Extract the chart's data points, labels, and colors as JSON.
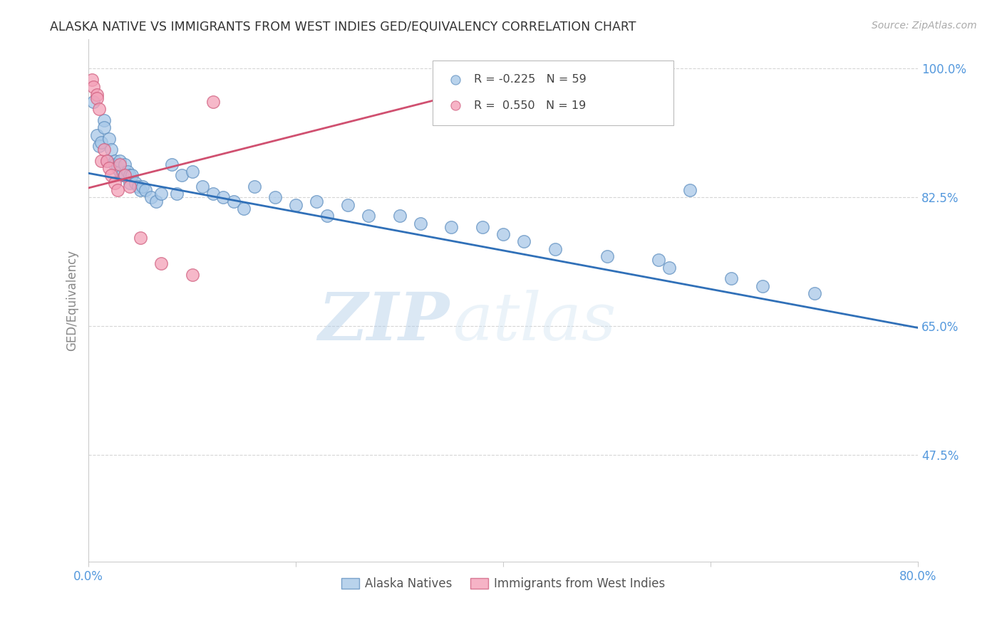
{
  "title": "ALASKA NATIVE VS IMMIGRANTS FROM WEST INDIES GED/EQUIVALENCY CORRELATION CHART",
  "source": "Source: ZipAtlas.com",
  "ylabel": "GED/Equivalency",
  "xlim": [
    0.0,
    0.8
  ],
  "ylim": [
    0.33,
    1.04
  ],
  "yticks": [
    0.475,
    0.65,
    0.825,
    1.0
  ],
  "ytick_labels": [
    "47.5%",
    "65.0%",
    "82.5%",
    "100.0%"
  ],
  "xticks": [
    0.0,
    0.2,
    0.4,
    0.6,
    0.8
  ],
  "xtick_labels": [
    "0.0%",
    "",
    "",
    "",
    "80.0%"
  ],
  "blue_scatter_x": [
    0.005,
    0.008,
    0.01,
    0.012,
    0.015,
    0.015,
    0.018,
    0.02,
    0.022,
    0.025,
    0.025,
    0.028,
    0.03,
    0.03,
    0.032,
    0.035,
    0.035,
    0.038,
    0.04,
    0.04,
    0.042,
    0.045,
    0.048,
    0.05,
    0.052,
    0.055,
    0.06,
    0.065,
    0.07,
    0.08,
    0.085,
    0.09,
    0.1,
    0.11,
    0.12,
    0.13,
    0.14,
    0.15,
    0.16,
    0.18,
    0.2,
    0.22,
    0.23,
    0.25,
    0.27,
    0.3,
    0.32,
    0.35,
    0.38,
    0.4,
    0.42,
    0.45,
    0.5,
    0.55,
    0.56,
    0.62,
    0.65,
    0.7,
    0.58
  ],
  "blue_scatter_y": [
    0.955,
    0.91,
    0.895,
    0.9,
    0.93,
    0.92,
    0.875,
    0.905,
    0.89,
    0.875,
    0.87,
    0.865,
    0.86,
    0.875,
    0.855,
    0.87,
    0.855,
    0.86,
    0.855,
    0.845,
    0.855,
    0.845,
    0.84,
    0.835,
    0.84,
    0.835,
    0.825,
    0.82,
    0.83,
    0.87,
    0.83,
    0.855,
    0.86,
    0.84,
    0.83,
    0.825,
    0.82,
    0.81,
    0.84,
    0.825,
    0.815,
    0.82,
    0.8,
    0.815,
    0.8,
    0.8,
    0.79,
    0.785,
    0.785,
    0.775,
    0.765,
    0.755,
    0.745,
    0.74,
    0.73,
    0.715,
    0.705,
    0.695,
    0.835
  ],
  "pink_scatter_x": [
    0.003,
    0.005,
    0.008,
    0.008,
    0.01,
    0.012,
    0.015,
    0.018,
    0.02,
    0.022,
    0.025,
    0.028,
    0.03,
    0.035,
    0.04,
    0.05,
    0.07,
    0.1,
    0.12
  ],
  "pink_scatter_y": [
    0.985,
    0.975,
    0.965,
    0.96,
    0.945,
    0.875,
    0.89,
    0.875,
    0.865,
    0.855,
    0.845,
    0.835,
    0.87,
    0.855,
    0.84,
    0.77,
    0.735,
    0.72,
    0.955
  ],
  "blue_line_x": [
    0.0,
    0.8
  ],
  "blue_line_y": [
    0.858,
    0.648
  ],
  "pink_line_x": [
    0.0,
    0.35
  ],
  "pink_line_y": [
    0.838,
    0.963
  ],
  "blue_color": "#a8c8e8",
  "pink_color": "#f4a0b8",
  "blue_edge_color": "#6090c0",
  "pink_edge_color": "#d06080",
  "blue_line_color": "#3070b8",
  "pink_line_color": "#d05070",
  "legend_blue_R": "-0.225",
  "legend_blue_N": "59",
  "legend_pink_R": "0.550",
  "legend_pink_N": "19",
  "watermark_zip": "ZIP",
  "watermark_atlas": "atlas",
  "background_color": "#ffffff",
  "grid_color": "#cccccc",
  "tick_color": "#5599dd",
  "ylabel_color": "#888888",
  "title_color": "#333333",
  "source_color": "#aaaaaa"
}
